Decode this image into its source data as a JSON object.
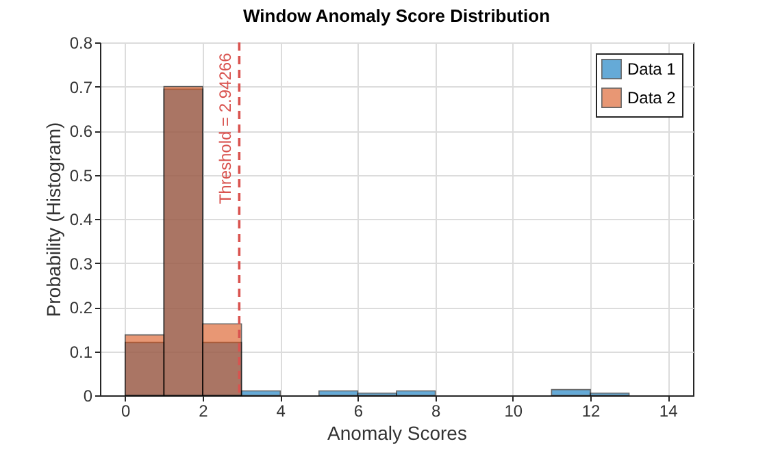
{
  "chart_data": {
    "type": "histogram",
    "title": "Window Anomaly Score Distribution",
    "xlabel": "Anomaly Scores",
    "ylabel": "Probability (Histogram)",
    "bins": [
      0,
      1,
      2,
      3,
      4,
      5,
      6,
      7,
      8,
      9,
      10,
      11,
      12,
      13
    ],
    "series": [
      {
        "name": "Data 1",
        "color": "#0072bd",
        "values": [
          0.12,
          0.694,
          0.12,
          0.01,
          0,
          0.01,
          0.005,
          0.01,
          0,
          0,
          0,
          0.013,
          0.005
        ]
      },
      {
        "name": "Data 2",
        "color": "#d95319",
        "values": [
          0.137,
          0.7,
          0.162,
          0,
          0,
          0,
          0,
          0,
          0,
          0,
          0,
          0,
          0
        ]
      }
    ],
    "xlim": [
      -0.65,
      14.65
    ],
    "xticks": [
      0,
      2,
      4,
      6,
      8,
      10,
      12,
      14
    ],
    "ylim": [
      0,
      0.8
    ],
    "yticks": [
      0,
      0.1,
      0.2,
      0.3,
      0.4,
      0.5,
      0.6,
      0.7,
      0.8
    ],
    "ref_lines": [
      {
        "axis": "x",
        "value": 2.94266,
        "label": "Threshold = 2.94266",
        "color": "#d9534f",
        "line_style": "dashed"
      }
    ],
    "grid": true,
    "legend": "top right"
  }
}
